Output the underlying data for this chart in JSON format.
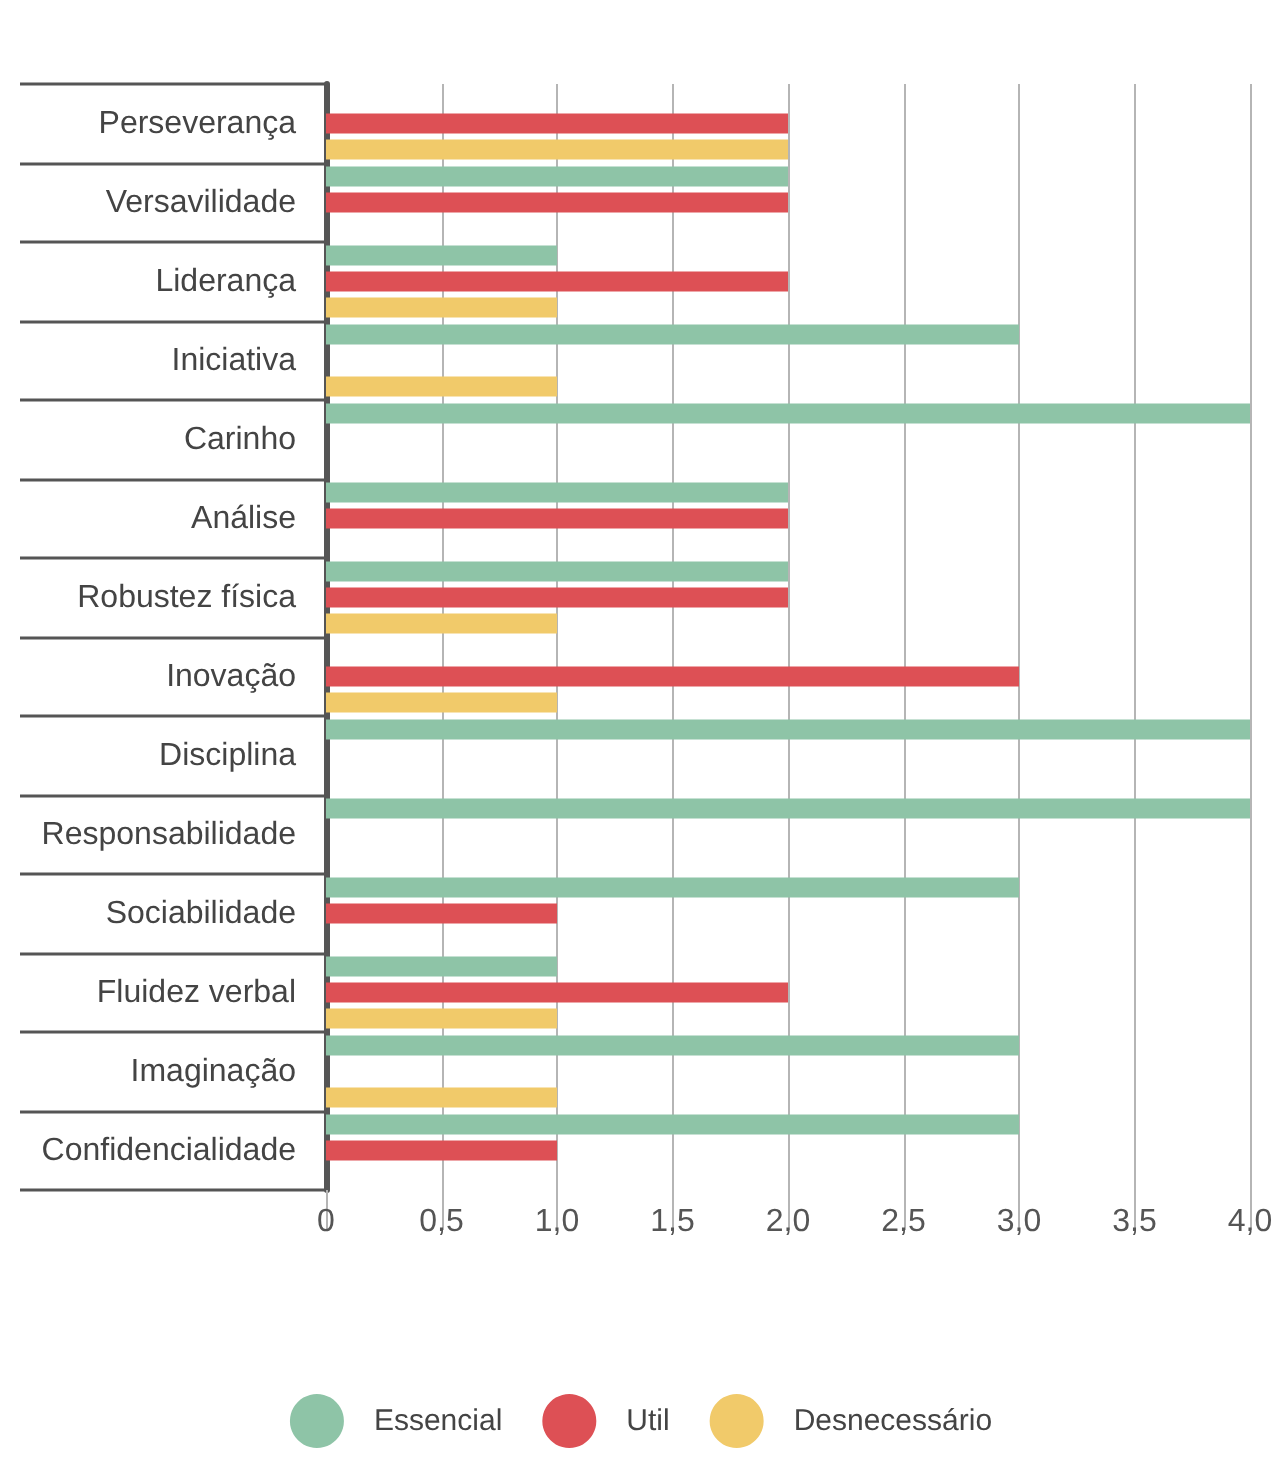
{
  "chart_data": {
    "type": "bar",
    "orientation": "horizontal",
    "categories": [
      "Perseverança",
      "Versavilidade",
      "Liderança",
      "Iniciativa",
      "Carinho",
      "Análise",
      "Robustez física",
      "Inovação",
      "Disciplina",
      "Responsabilidade",
      "Sociabilidade",
      "Fluidez verbal",
      "Imaginação",
      "Confidencialidade"
    ],
    "series": [
      {
        "name": "Essencial",
        "color": "#8ec4a7",
        "values": [
          0,
          2,
          1,
          3,
          4,
          2,
          2,
          0,
          4,
          4,
          3,
          1,
          3,
          3
        ]
      },
      {
        "name": "Util",
        "color": "#dd5055",
        "values": [
          2,
          2,
          2,
          0,
          0,
          2,
          2,
          3,
          0,
          0,
          1,
          2,
          0,
          1
        ]
      },
      {
        "name": "Desnecessário",
        "color": "#f1ca6a",
        "values": [
          2,
          0,
          1,
          1,
          0,
          0,
          1,
          1,
          0,
          0,
          0,
          1,
          1,
          0
        ]
      }
    ],
    "xlim": [
      0,
      4
    ],
    "xticks": [
      0,
      {
        "value": 0.5,
        "label": "0,5"
      },
      {
        "value": 1,
        "label": "1,0"
      },
      {
        "value": 1.5,
        "label": "1,5"
      },
      {
        "value": 2,
        "label": "2,0"
      },
      {
        "value": 2.5,
        "label": "2,5"
      },
      {
        "value": 3,
        "label": "3,0"
      },
      {
        "value": 3.5,
        "label": "3,5"
      },
      {
        "value": 4,
        "label": "4,0"
      }
    ],
    "grid": "x",
    "legend": "bottom"
  }
}
